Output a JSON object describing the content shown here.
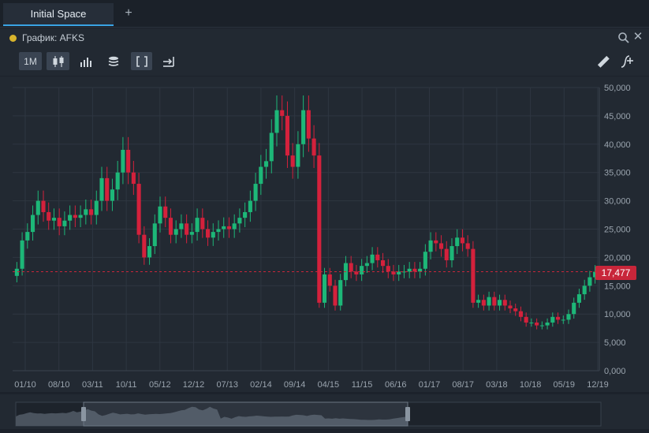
{
  "tabs": {
    "active_label": "Initial Space",
    "add_label": "+"
  },
  "panel": {
    "title": "График: AFKS",
    "dot_color": "#d8b42c"
  },
  "toolbar": {
    "interval_label": "1M",
    "tools": [
      "candles-icon",
      "bars-icon",
      "volume-icon",
      "bracket-icon",
      "export-icon",
      "ruler-icon",
      "indicator-add-icon"
    ]
  },
  "price_tag": {
    "value": "17,477",
    "color": "#c8263a"
  },
  "colors": {
    "up": "#1db778",
    "down": "#d4213c",
    "grid": "#2e3641",
    "bg": "#222932"
  },
  "chart_data": {
    "type": "candlestick",
    "instrument": "AFKS",
    "interval": "1M",
    "last_price": 17477,
    "ylim": [
      0,
      50000
    ],
    "y_ticks": [
      "0,000",
      "5,000",
      "10,000",
      "15,000",
      "20,000",
      "25,000",
      "30,000",
      "35,000",
      "40,000",
      "45,000",
      "50,000"
    ],
    "x_ticks": [
      "01/10",
      "08/10",
      "03/11",
      "10/11",
      "05/12",
      "12/12",
      "07/13",
      "02/14",
      "09/14",
      "04/15",
      "11/15",
      "06/16",
      "01/17",
      "08/17",
      "03/18",
      "10/18",
      "05/19",
      "12/19"
    ],
    "close_series": [
      18000,
      23000,
      24500,
      27500,
      30000,
      28000,
      26500,
      27000,
      25500,
      26500,
      27500,
      27000,
      27500,
      28500,
      27500,
      30000,
      34000,
      30000,
      32000,
      35000,
      39000,
      35000,
      33000,
      24000,
      20000,
      22000,
      26000,
      29000,
      27000,
      24000,
      25000,
      26000,
      24000,
      24500,
      27000,
      25000,
      23500,
      24500,
      25000,
      25500,
      25000,
      26000,
      27000,
      28000,
      30000,
      33000,
      36000,
      37000,
      42000,
      46000,
      45000,
      38000,
      36000,
      40000,
      46000,
      41000,
      38000,
      12000,
      17000,
      15000,
      11500,
      16000,
      19000,
      17500,
      17000,
      18500,
      19000,
      20500,
      19500,
      18500,
      17500,
      17000,
      17500,
      17500,
      18000,
      17500,
      18000,
      21000,
      23000,
      22500,
      21500,
      19500,
      22000,
      23500,
      22500,
      21500,
      12000,
      12500,
      11500,
      13000,
      11500,
      12500,
      11500,
      11000,
      10500,
      9500,
      8500,
      8500,
      8000,
      8000,
      8500,
      9500,
      9000,
      9000,
      10000,
      12000,
      13500,
      15000,
      16500,
      17477
    ]
  }
}
